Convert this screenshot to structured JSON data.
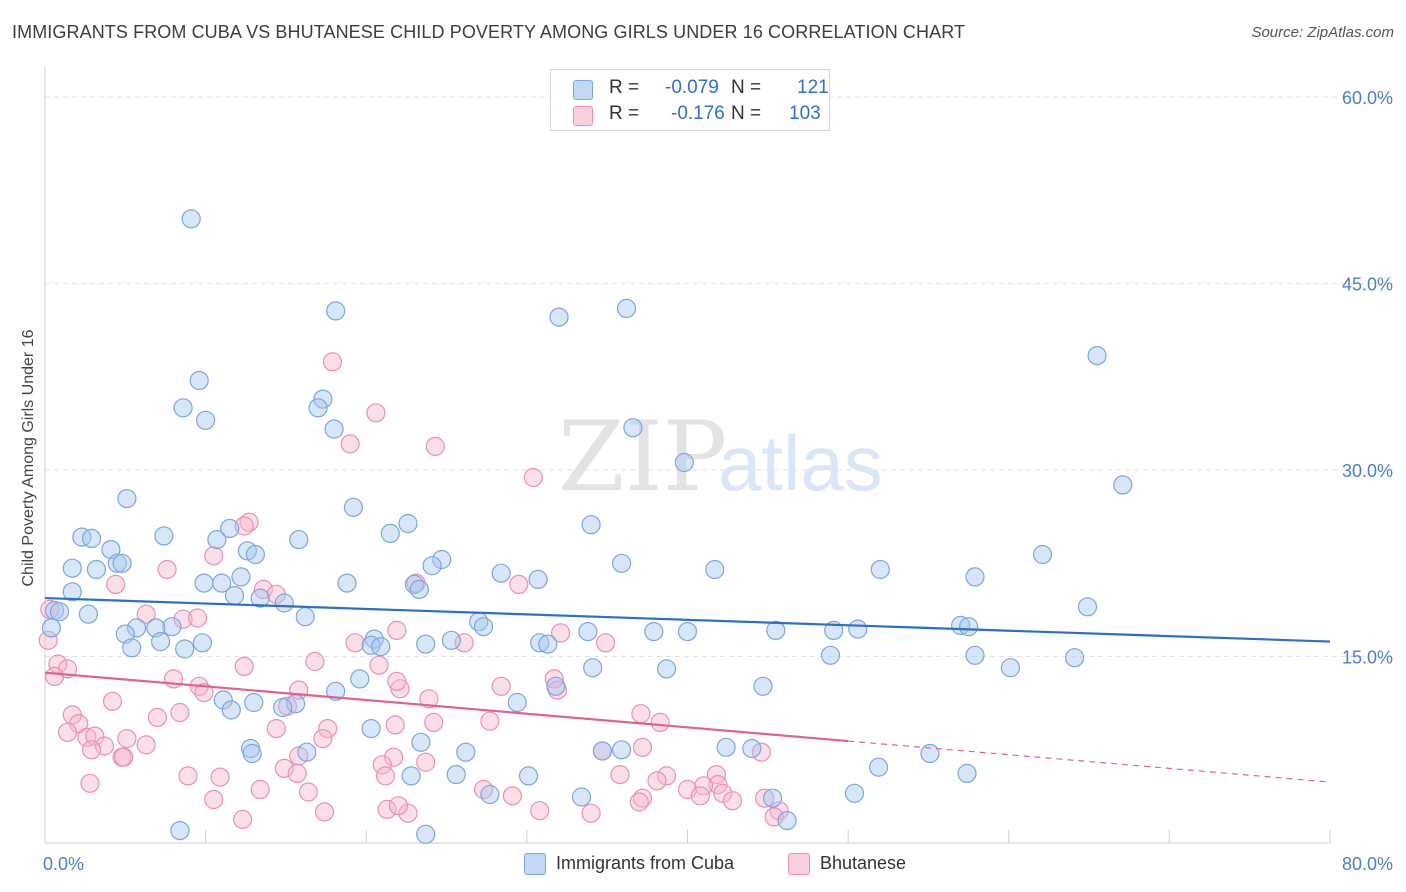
{
  "title": "IMMIGRANTS FROM CUBA VS BHUTANESE CHILD POVERTY AMONG GIRLS UNDER 16 CORRELATION CHART",
  "source": "Source: ZipAtlas.com",
  "watermark": {
    "zip": "ZIP",
    "atlas": "atlas"
  },
  "legend": {
    "r_label": "R =",
    "n_label": "N =",
    "rows": [
      {
        "r": "-0.079",
        "n": "121",
        "color": "#a9c8f2"
      },
      {
        "r": "-0.176",
        "n": "103",
        "color": "#f6b8cd"
      }
    ]
  },
  "chart_data": {
    "type": "scatter",
    "title": "IMMIGRANTS FROM CUBA VS BHUTANESE CHILD POVERTY AMONG GIRLS UNDER 16 CORRELATION CHART",
    "xlabel": "",
    "ylabel": "Child Poverty Among Girls Under 16",
    "xlim": [
      0,
      80
    ],
    "ylim": [
      0,
      60
    ],
    "x_tick_labels": [
      "0.0%",
      "80.0%"
    ],
    "y_ticks": [
      15,
      30,
      45,
      60
    ],
    "y_tick_labels": [
      "15.0%",
      "30.0%",
      "45.0%",
      "60.0%"
    ],
    "grid": true,
    "legend_position": "bottom",
    "series": [
      {
        "name": "Immigrants from Cuba",
        "color": "#a9c8f2",
        "stroke": "#7aa6e0",
        "line_color": "#2a6fcc",
        "trend": {
          "x": [
            0,
            80
          ],
          "y": [
            19.7,
            16.2
          ]
        },
        "points": [
          [
            9.1,
            50.2
          ],
          [
            18.1,
            42.8
          ],
          [
            32.0,
            42.3
          ],
          [
            36.2,
            43.0
          ],
          [
            65.5,
            39.2
          ],
          [
            9.6,
            37.2
          ],
          [
            8.6,
            35.0
          ],
          [
            17.3,
            35.7
          ],
          [
            17.0,
            35.0
          ],
          [
            10.0,
            34.0
          ],
          [
            36.6,
            33.4
          ],
          [
            18.0,
            33.3
          ],
          [
            39.8,
            30.6
          ],
          [
            67.1,
            28.8
          ],
          [
            5.1,
            27.7
          ],
          [
            19.2,
            27.0
          ],
          [
            22.6,
            25.7
          ],
          [
            34.0,
            25.6
          ],
          [
            11.5,
            25.3
          ],
          [
            2.3,
            24.6
          ],
          [
            7.4,
            24.7
          ],
          [
            2.9,
            24.5
          ],
          [
            10.7,
            24.4
          ],
          [
            21.5,
            24.9
          ],
          [
            15.8,
            24.4
          ],
          [
            4.1,
            23.6
          ],
          [
            12.6,
            23.5
          ],
          [
            13.1,
            23.2
          ],
          [
            62.1,
            23.2
          ],
          [
            24.7,
            22.8
          ],
          [
            4.5,
            22.5
          ],
          [
            4.8,
            22.5
          ],
          [
            35.9,
            22.5
          ],
          [
            3.2,
            22.0
          ],
          [
            24.1,
            22.3
          ],
          [
            41.7,
            22.0
          ],
          [
            1.7,
            22.1
          ],
          [
            52.0,
            22.0
          ],
          [
            57.9,
            21.4
          ],
          [
            12.2,
            21.4
          ],
          [
            28.4,
            21.7
          ],
          [
            30.7,
            21.2
          ],
          [
            9.9,
            20.9
          ],
          [
            11.0,
            20.9
          ],
          [
            18.8,
            20.9
          ],
          [
            23.0,
            20.8
          ],
          [
            23.3,
            20.4
          ],
          [
            1.7,
            20.2
          ],
          [
            11.8,
            19.9
          ],
          [
            13.4,
            19.7
          ],
          [
            14.9,
            19.3
          ],
          [
            0.6,
            18.7
          ],
          [
            0.9,
            18.6
          ],
          [
            2.7,
            18.4
          ],
          [
            16.2,
            18.2
          ],
          [
            64.9,
            19.0
          ],
          [
            7.9,
            17.4
          ],
          [
            27.0,
            17.8
          ],
          [
            45.5,
            17.1
          ],
          [
            37.9,
            17.0
          ],
          [
            40.0,
            17.0
          ],
          [
            33.8,
            17.0
          ],
          [
            49.1,
            17.1
          ],
          [
            50.6,
            17.2
          ],
          [
            0.4,
            17.3
          ],
          [
            5.7,
            17.3
          ],
          [
            27.3,
            17.4
          ],
          [
            6.9,
            17.3
          ],
          [
            5.0,
            16.8
          ],
          [
            20.5,
            16.4
          ],
          [
            25.3,
            16.3
          ],
          [
            30.8,
            16.1
          ],
          [
            31.3,
            16.0
          ],
          [
            20.3,
            15.9
          ],
          [
            7.2,
            16.2
          ],
          [
            9.8,
            16.1
          ],
          [
            23.7,
            16.0
          ],
          [
            5.4,
            15.7
          ],
          [
            20.9,
            15.8
          ],
          [
            8.7,
            15.6
          ],
          [
            57.0,
            17.5
          ],
          [
            57.5,
            17.4
          ],
          [
            48.9,
            15.1
          ],
          [
            57.9,
            15.1
          ],
          [
            64.1,
            14.9
          ],
          [
            34.1,
            14.1
          ],
          [
            38.7,
            14.0
          ],
          [
            60.1,
            14.1
          ],
          [
            19.6,
            13.2
          ],
          [
            44.7,
            12.6
          ],
          [
            18.1,
            12.2
          ],
          [
            31.8,
            12.6
          ],
          [
            15.6,
            11.2
          ],
          [
            11.1,
            11.5
          ],
          [
            13.0,
            11.3
          ],
          [
            29.4,
            11.3
          ],
          [
            11.6,
            10.7
          ],
          [
            14.8,
            10.9
          ],
          [
            20.3,
            9.2
          ],
          [
            23.4,
            8.1
          ],
          [
            12.8,
            7.6
          ],
          [
            42.4,
            7.7
          ],
          [
            26.2,
            7.3
          ],
          [
            35.9,
            7.5
          ],
          [
            12.9,
            7.2
          ],
          [
            16.3,
            7.3
          ],
          [
            44.0,
            7.6
          ],
          [
            51.9,
            6.1
          ],
          [
            55.1,
            7.2
          ],
          [
            34.7,
            7.4
          ],
          [
            22.8,
            5.4
          ],
          [
            25.6,
            5.5
          ],
          [
            30.1,
            5.4
          ],
          [
            27.7,
            3.9
          ],
          [
            45.3,
            3.6
          ],
          [
            50.4,
            4.0
          ],
          [
            46.2,
            1.8
          ],
          [
            8.4,
            1.0
          ],
          [
            23.7,
            0.7
          ],
          [
            33.4,
            3.7
          ],
          [
            57.4,
            5.6
          ]
        ]
      },
      {
        "name": "Bhutanese",
        "color": "#f6b8cd",
        "stroke": "#ec8fb0",
        "line_color": "#e0628e",
        "trend": {
          "x": [
            0,
            50
          ],
          "y": [
            13.7,
            8.2
          ]
        },
        "trend_dashed": {
          "x": [
            50,
            80
          ],
          "y": [
            8.2,
            4.9
          ]
        },
        "points": [
          [
            17.9,
            38.7
          ],
          [
            20.6,
            34.6
          ],
          [
            24.3,
            31.9
          ],
          [
            19.0,
            32.1
          ],
          [
            30.4,
            29.4
          ],
          [
            29.5,
            20.8
          ],
          [
            12.7,
            25.8
          ],
          [
            12.4,
            25.5
          ],
          [
            10.5,
            23.1
          ],
          [
            0.3,
            18.8
          ],
          [
            0.2,
            16.3
          ],
          [
            4.4,
            20.8
          ],
          [
            13.6,
            20.4
          ],
          [
            14.4,
            20.0
          ],
          [
            7.6,
            22.0
          ],
          [
            23.1,
            20.9
          ],
          [
            8.6,
            18.0
          ],
          [
            9.5,
            18.1
          ],
          [
            6.3,
            18.4
          ],
          [
            21.9,
            17.1
          ],
          [
            32.1,
            16.9
          ],
          [
            19.3,
            16.1
          ],
          [
            26.1,
            16.1
          ],
          [
            34.9,
            16.1
          ],
          [
            0.8,
            14.4
          ],
          [
            1.4,
            14.0
          ],
          [
            12.4,
            14.2
          ],
          [
            16.8,
            14.6
          ],
          [
            20.8,
            14.3
          ],
          [
            0.6,
            13.4
          ],
          [
            8.0,
            13.2
          ],
          [
            22.1,
            12.4
          ],
          [
            23.9,
            11.6
          ],
          [
            9.6,
            12.6
          ],
          [
            21.9,
            13.0
          ],
          [
            31.7,
            13.2
          ],
          [
            28.4,
            12.6
          ],
          [
            15.8,
            12.3
          ],
          [
            9.9,
            12.1
          ],
          [
            4.2,
            11.4
          ],
          [
            7.0,
            10.1
          ],
          [
            8.4,
            10.5
          ],
          [
            15.1,
            11.0
          ],
          [
            38.3,
            9.7
          ],
          [
            31.9,
            12.3
          ],
          [
            37.1,
            10.4
          ],
          [
            1.7,
            10.3
          ],
          [
            2.1,
            9.6
          ],
          [
            17.6,
            9.2
          ],
          [
            24.2,
            9.7
          ],
          [
            21.8,
            9.5
          ],
          [
            27.7,
            9.8
          ],
          [
            2.6,
            8.5
          ],
          [
            3.1,
            8.6
          ],
          [
            1.4,
            8.9
          ],
          [
            5.1,
            8.4
          ],
          [
            3.7,
            7.8
          ],
          [
            6.3,
            7.9
          ],
          [
            2.9,
            7.5
          ],
          [
            14.4,
            9.2
          ],
          [
            17.3,
            8.4
          ],
          [
            4.8,
            6.9
          ],
          [
            4.9,
            6.9
          ],
          [
            21.7,
            6.9
          ],
          [
            15.8,
            7.0
          ],
          [
            37.2,
            7.7
          ],
          [
            34.7,
            7.4
          ],
          [
            44.6,
            7.3
          ],
          [
            23.7,
            6.5
          ],
          [
            21.0,
            6.3
          ],
          [
            2.8,
            4.8
          ],
          [
            14.9,
            6.0
          ],
          [
            8.9,
            5.4
          ],
          [
            10.9,
            5.3
          ],
          [
            15.7,
            5.6
          ],
          [
            21.2,
            5.4
          ],
          [
            35.8,
            5.5
          ],
          [
            38.7,
            5.4
          ],
          [
            41.8,
            5.5
          ],
          [
            41.9,
            4.7
          ],
          [
            38.1,
            5.0
          ],
          [
            41.0,
            4.6
          ],
          [
            27.3,
            4.3
          ],
          [
            29.1,
            3.8
          ],
          [
            37.2,
            3.6
          ],
          [
            13.4,
            4.3
          ],
          [
            16.4,
            4.1
          ],
          [
            10.5,
            3.5
          ],
          [
            40.0,
            4.3
          ],
          [
            40.8,
            3.8
          ],
          [
            42.2,
            4.0
          ],
          [
            42.8,
            3.4
          ],
          [
            44.8,
            3.6
          ],
          [
            45.7,
            2.6
          ],
          [
            21.3,
            2.7
          ],
          [
            22.6,
            2.4
          ],
          [
            30.8,
            2.6
          ],
          [
            34.0,
            2.4
          ],
          [
            12.3,
            1.9
          ],
          [
            17.4,
            2.5
          ],
          [
            22.0,
            3.0
          ],
          [
            37.0,
            3.3
          ],
          [
            45.4,
            2.1
          ]
        ]
      }
    ]
  }
}
